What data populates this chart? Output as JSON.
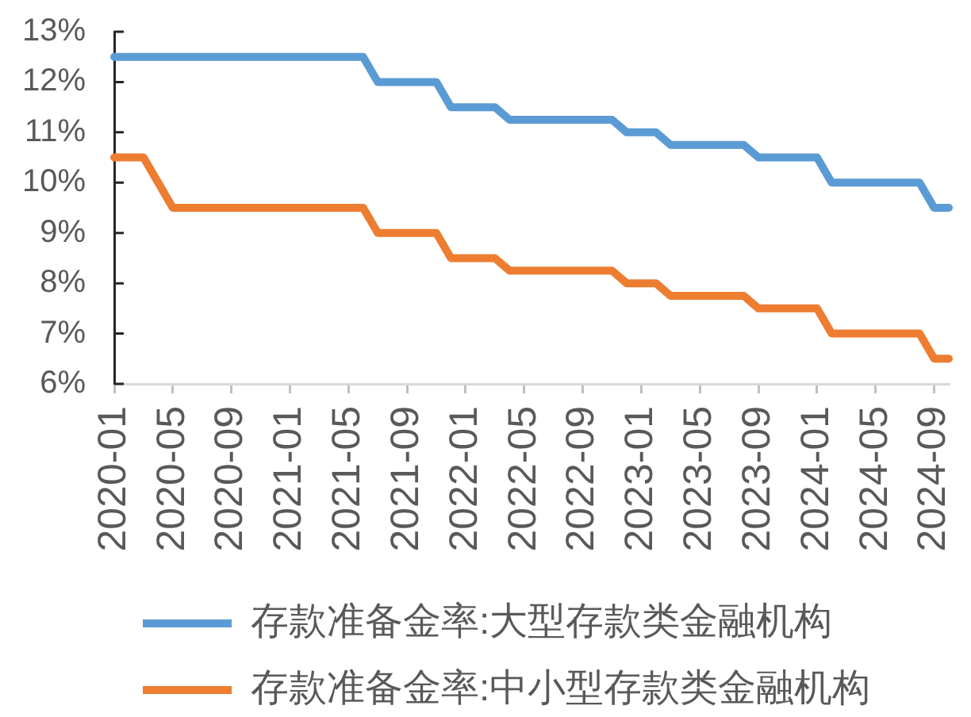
{
  "chart_data": {
    "type": "line",
    "categories": [
      "2020-01",
      null,
      null,
      null,
      "2020-05",
      null,
      null,
      null,
      "2020-09",
      null,
      null,
      null,
      "2021-01",
      null,
      null,
      null,
      "2021-05",
      null,
      null,
      null,
      "2021-09",
      null,
      null,
      null,
      "2022-01",
      null,
      null,
      null,
      "2022-05",
      null,
      null,
      null,
      "2022-09",
      null,
      null,
      null,
      "2023-01",
      null,
      null,
      null,
      "2023-05",
      null,
      null,
      null,
      "2023-09",
      null,
      null,
      null,
      "2024-01",
      null,
      null,
      null,
      "2024-05",
      null,
      null,
      null,
      "2024-09",
      null
    ],
    "series": [
      {
        "name": "存款准备金率:大型存款类金融机构",
        "color": "#5b9bd5",
        "values": [
          12.5,
          12.5,
          12.5,
          12.5,
          12.5,
          12.5,
          12.5,
          12.5,
          12.5,
          12.5,
          12.5,
          12.5,
          12.5,
          12.5,
          12.5,
          12.5,
          12.5,
          12.5,
          12,
          12,
          12,
          12,
          12,
          11.5,
          11.5,
          11.5,
          11.5,
          11.25,
          11.25,
          11.25,
          11.25,
          11.25,
          11.25,
          11.25,
          11.25,
          11,
          11,
          11,
          10.75,
          10.75,
          10.75,
          10.75,
          10.75,
          10.75,
          10.5,
          10.5,
          10.5,
          10.5,
          10.5,
          10,
          10,
          10,
          10,
          10,
          10,
          10,
          9.5,
          9.5
        ]
      },
      {
        "name": "存款准备金率:中小型存款类金融机构",
        "color": "#ed7d31",
        "values": [
          10.5,
          10.5,
          10.5,
          10,
          9.5,
          9.5,
          9.5,
          9.5,
          9.5,
          9.5,
          9.5,
          9.5,
          9.5,
          9.5,
          9.5,
          9.5,
          9.5,
          9.5,
          9,
          9,
          9,
          9,
          9,
          8.5,
          8.5,
          8.5,
          8.5,
          8.25,
          8.25,
          8.25,
          8.25,
          8.25,
          8.25,
          8.25,
          8.25,
          8,
          8,
          8,
          7.75,
          7.75,
          7.75,
          7.75,
          7.75,
          7.75,
          7.5,
          7.5,
          7.5,
          7.5,
          7.5,
          7,
          7,
          7,
          7,
          7,
          7,
          7,
          6.5,
          6.5
        ]
      }
    ],
    "ylim": [
      6,
      13
    ],
    "yticks": [
      {
        "value": 6,
        "label": "6%"
      },
      {
        "value": 7,
        "label": "7%"
      },
      {
        "value": 8,
        "label": "8%"
      },
      {
        "value": 9,
        "label": "9%"
      },
      {
        "value": 10,
        "label": "10%"
      },
      {
        "value": 11,
        "label": "11%"
      },
      {
        "value": 12,
        "label": "12%"
      },
      {
        "value": 13,
        "label": "13%"
      }
    ],
    "legend": "bottom left",
    "marker": "none"
  }
}
